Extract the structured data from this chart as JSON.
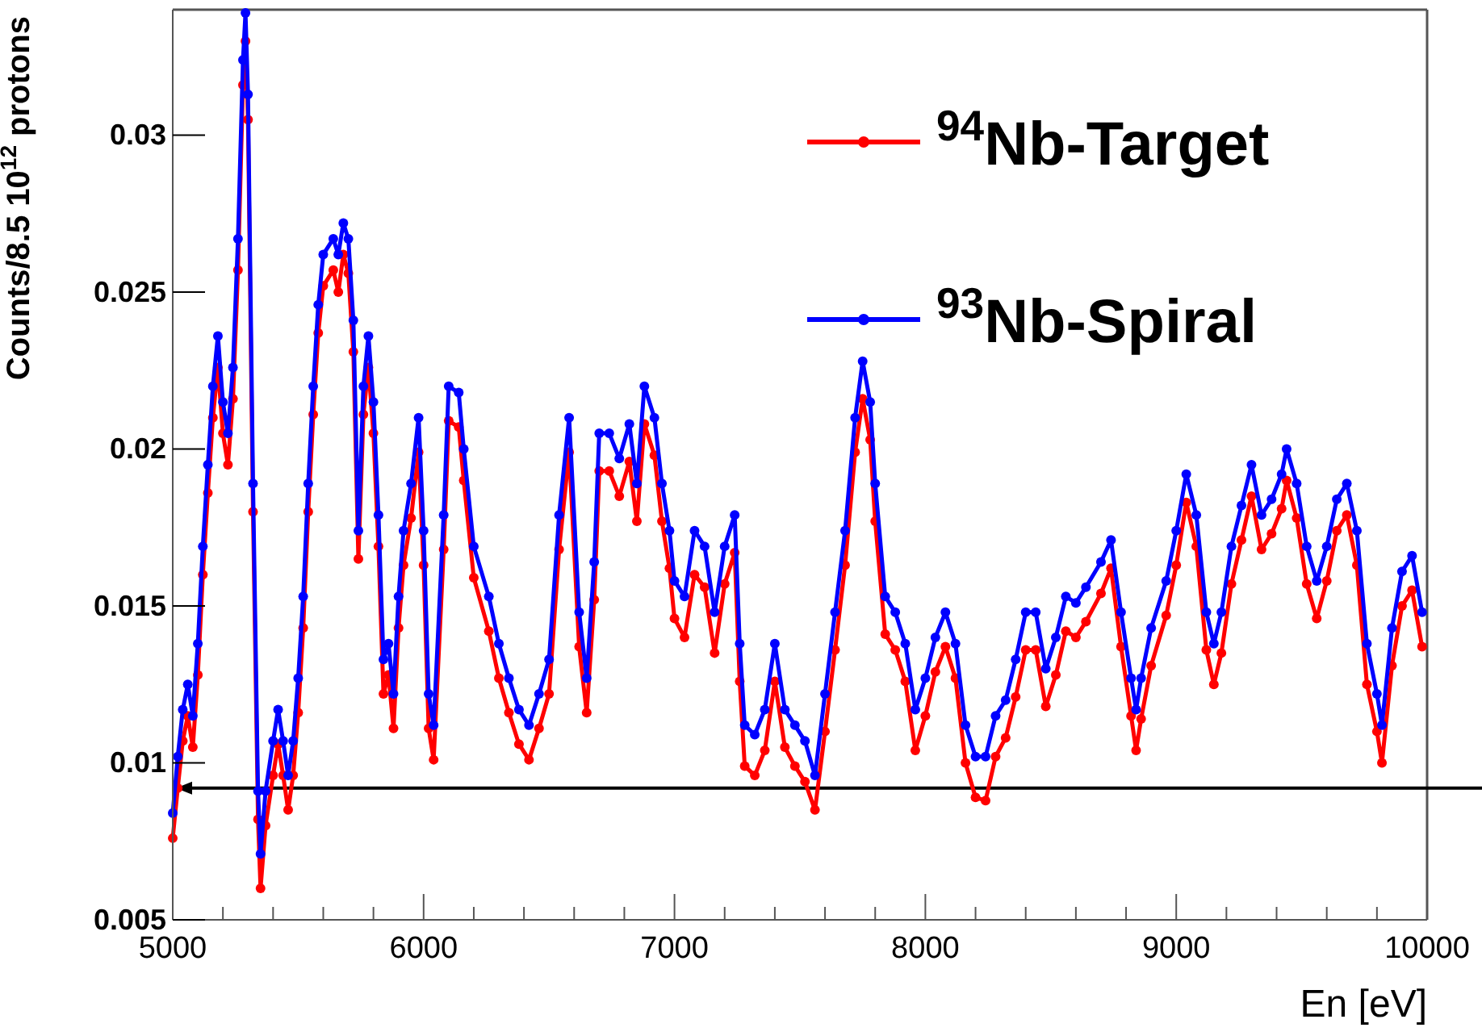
{
  "chart_data": {
    "type": "line",
    "xlabel": "En [eV]",
    "ylabel": "Counts/8.5 10$^{12}$ protons",
    "x": [
      5000,
      5020,
      5040,
      5060,
      5080,
      5100,
      5120,
      5140,
      5160,
      5180,
      5200,
      5220,
      5240,
      5260,
      5280,
      5290,
      5300,
      5320,
      5340,
      5350,
      5370,
      5400,
      5420,
      5440,
      5460,
      5480,
      5500,
      5520,
      5540,
      5560,
      5580,
      5600,
      5640,
      5660,
      5680,
      5700,
      5720,
      5740,
      5760,
      5780,
      5800,
      5820,
      5840,
      5860,
      5880,
      5900,
      5920,
      5950,
      5980,
      6000,
      6020,
      6040,
      6080,
      6100,
      6140,
      6160,
      6200,
      6260,
      6300,
      6340,
      6380,
      6420,
      6460,
      6500,
      6540,
      6580,
      6620,
      6650,
      6680,
      6700,
      6740,
      6780,
      6820,
      6850,
      6880,
      6920,
      6950,
      6980,
      7000,
      7040,
      7080,
      7120,
      7160,
      7200,
      7240,
      7260,
      7280,
      7320,
      7360,
      7400,
      7440,
      7480,
      7520,
      7560,
      7600,
      7640,
      7680,
      7720,
      7750,
      7780,
      7800,
      7840,
      7880,
      7920,
      7960,
      8000,
      8040,
      8080,
      8120,
      8160,
      8200,
      8240,
      8280,
      8320,
      8360,
      8400,
      8440,
      8480,
      8520,
      8560,
      8600,
      8640,
      8700,
      8740,
      8780,
      8820,
      8840,
      8860,
      8900,
      8960,
      9000,
      9040,
      9080,
      9120,
      9150,
      9180,
      9220,
      9260,
      9300,
      9340,
      9380,
      9420,
      9440,
      9480,
      9520,
      9560,
      9600,
      9640,
      9680,
      9720,
      9760,
      9800,
      9820,
      9860,
      9900,
      9940,
      9980
    ],
    "series": [
      {
        "name": "$^{94}$Nb-Target",
        "color": "#ff0000",
        "values": [
          0.0076,
          0.0092,
          0.0107,
          0.0115,
          0.0105,
          0.0128,
          0.016,
          0.0186,
          0.021,
          0.0226,
          0.0205,
          0.0195,
          0.0216,
          0.0257,
          0.0316,
          0.033,
          0.0305,
          0.018,
          0.0082,
          0.006,
          0.008,
          0.0096,
          0.0106,
          0.0096,
          0.0085,
          0.0096,
          0.0116,
          0.0143,
          0.018,
          0.0211,
          0.0237,
          0.0252,
          0.0257,
          0.025,
          0.0262,
          0.0256,
          0.0231,
          0.0165,
          0.0211,
          0.0226,
          0.0205,
          0.0169,
          0.0122,
          0.0128,
          0.0111,
          0.0143,
          0.0163,
          0.0178,
          0.0199,
          0.0163,
          0.0111,
          0.0101,
          0.0168,
          0.0209,
          0.0207,
          0.019,
          0.0159,
          0.0142,
          0.0127,
          0.0116,
          0.0106,
          0.0101,
          0.0111,
          0.0122,
          0.0168,
          0.0199,
          0.0137,
          0.0116,
          0.0152,
          0.0193,
          0.0193,
          0.0185,
          0.0196,
          0.0177,
          0.0208,
          0.0198,
          0.0177,
          0.0162,
          0.0146,
          0.014,
          0.016,
          0.0156,
          0.0135,
          0.0157,
          0.0167,
          0.0126,
          0.0099,
          0.0096,
          0.0104,
          0.0126,
          0.0105,
          0.0099,
          0.0094,
          0.0085,
          0.011,
          0.0136,
          0.0163,
          0.0199,
          0.0216,
          0.0203,
          0.0177,
          0.0141,
          0.0136,
          0.0126,
          0.0104,
          0.0115,
          0.0129,
          0.0137,
          0.0127,
          0.01,
          0.0089,
          0.0088,
          0.0102,
          0.0108,
          0.0121,
          0.0136,
          0.0136,
          0.0118,
          0.0128,
          0.0142,
          0.014,
          0.0145,
          0.0154,
          0.0162,
          0.0137,
          0.0115,
          0.0104,
          0.0114,
          0.0131,
          0.0147,
          0.0163,
          0.0183,
          0.0169,
          0.0136,
          0.0125,
          0.0135,
          0.0157,
          0.0171,
          0.0185,
          0.0168,
          0.0173,
          0.0181,
          0.019,
          0.0178,
          0.0157,
          0.0146,
          0.0158,
          0.0174,
          0.0179,
          0.0163,
          0.0125,
          0.011,
          0.01,
          0.0131,
          0.015,
          0.0155,
          0.0137
        ]
      },
      {
        "name": "$^{93}$Nb-Spiral",
        "color": "#0000ff",
        "values": [
          0.0084,
          0.0102,
          0.0117,
          0.0125,
          0.0115,
          0.0138,
          0.0169,
          0.0195,
          0.022,
          0.0236,
          0.0215,
          0.0205,
          0.0226,
          0.0267,
          0.0324,
          0.0339,
          0.0313,
          0.0189,
          0.0091,
          0.0071,
          0.0091,
          0.0107,
          0.0117,
          0.0107,
          0.0096,
          0.0107,
          0.0127,
          0.0153,
          0.0189,
          0.022,
          0.0246,
          0.0262,
          0.0267,
          0.0262,
          0.0272,
          0.0267,
          0.0241,
          0.0174,
          0.022,
          0.0236,
          0.0215,
          0.0179,
          0.0133,
          0.0138,
          0.0122,
          0.0153,
          0.0174,
          0.0189,
          0.021,
          0.0174,
          0.0122,
          0.0112,
          0.0179,
          0.022,
          0.0218,
          0.02,
          0.0169,
          0.0153,
          0.0138,
          0.0127,
          0.0117,
          0.0112,
          0.0122,
          0.0133,
          0.0179,
          0.021,
          0.0148,
          0.0127,
          0.0164,
          0.0205,
          0.0205,
          0.0197,
          0.0208,
          0.0189,
          0.022,
          0.021,
          0.0189,
          0.0174,
          0.0158,
          0.0153,
          0.0174,
          0.0169,
          0.0148,
          0.0169,
          0.0179,
          0.0138,
          0.0112,
          0.0109,
          0.0117,
          0.0138,
          0.0117,
          0.0112,
          0.0107,
          0.0096,
          0.0122,
          0.0148,
          0.0174,
          0.021,
          0.0228,
          0.0215,
          0.0189,
          0.0153,
          0.0148,
          0.0138,
          0.0117,
          0.0127,
          0.014,
          0.0148,
          0.0138,
          0.0112,
          0.0102,
          0.0102,
          0.0115,
          0.012,
          0.0133,
          0.0148,
          0.0148,
          0.013,
          0.014,
          0.0153,
          0.0151,
          0.0156,
          0.0164,
          0.0171,
          0.0148,
          0.0127,
          0.0117,
          0.0127,
          0.0143,
          0.0158,
          0.0174,
          0.0192,
          0.0179,
          0.0148,
          0.0138,
          0.0148,
          0.0169,
          0.0182,
          0.0195,
          0.0179,
          0.0184,
          0.0192,
          0.02,
          0.0189,
          0.0169,
          0.0158,
          0.0169,
          0.0184,
          0.0189,
          0.0174,
          0.0138,
          0.0122,
          0.0112,
          0.0143,
          0.0161,
          0.0166,
          0.0148
        ]
      }
    ],
    "xlim": [
      5000,
      10000
    ],
    "xticks": [
      5000,
      {
        "value": 5200,
        "label": null
      },
      {
        "value": 5400,
        "label": null
      },
      {
        "value": 5600,
        "label": null
      },
      {
        "value": 5800,
        "label": null
      },
      6000,
      {
        "value": 6200,
        "label": null
      },
      {
        "value": 6400,
        "label": null
      },
      {
        "value": 6600,
        "label": null
      },
      {
        "value": 6800,
        "label": null
      },
      7000,
      {
        "value": 7200,
        "label": null
      },
      {
        "value": 7400,
        "label": null
      },
      {
        "value": 7600,
        "label": null
      },
      {
        "value": 7800,
        "label": null
      },
      8000,
      {
        "value": 8200,
        "label": null
      },
      {
        "value": 8400,
        "label": null
      },
      {
        "value": 8600,
        "label": null
      },
      {
        "value": 8800,
        "label": null
      },
      9000,
      {
        "value": 9200,
        "label": null
      },
      {
        "value": 9400,
        "label": null
      },
      {
        "value": 9600,
        "label": null
      },
      {
        "value": 9800,
        "label": null
      },
      10000
    ],
    "ylim": [
      0.005,
      0.034
    ],
    "yticks": [
      0.005,
      0.01,
      0.015,
      0.02,
      0.025,
      0.03
    ],
    "ref_lines": [
      {
        "axis": "y",
        "value": 0.0092,
        "color": "#000000"
      }
    ],
    "legend": "top right",
    "marker": "circle",
    "line_style": "solid",
    "grid": false
  }
}
